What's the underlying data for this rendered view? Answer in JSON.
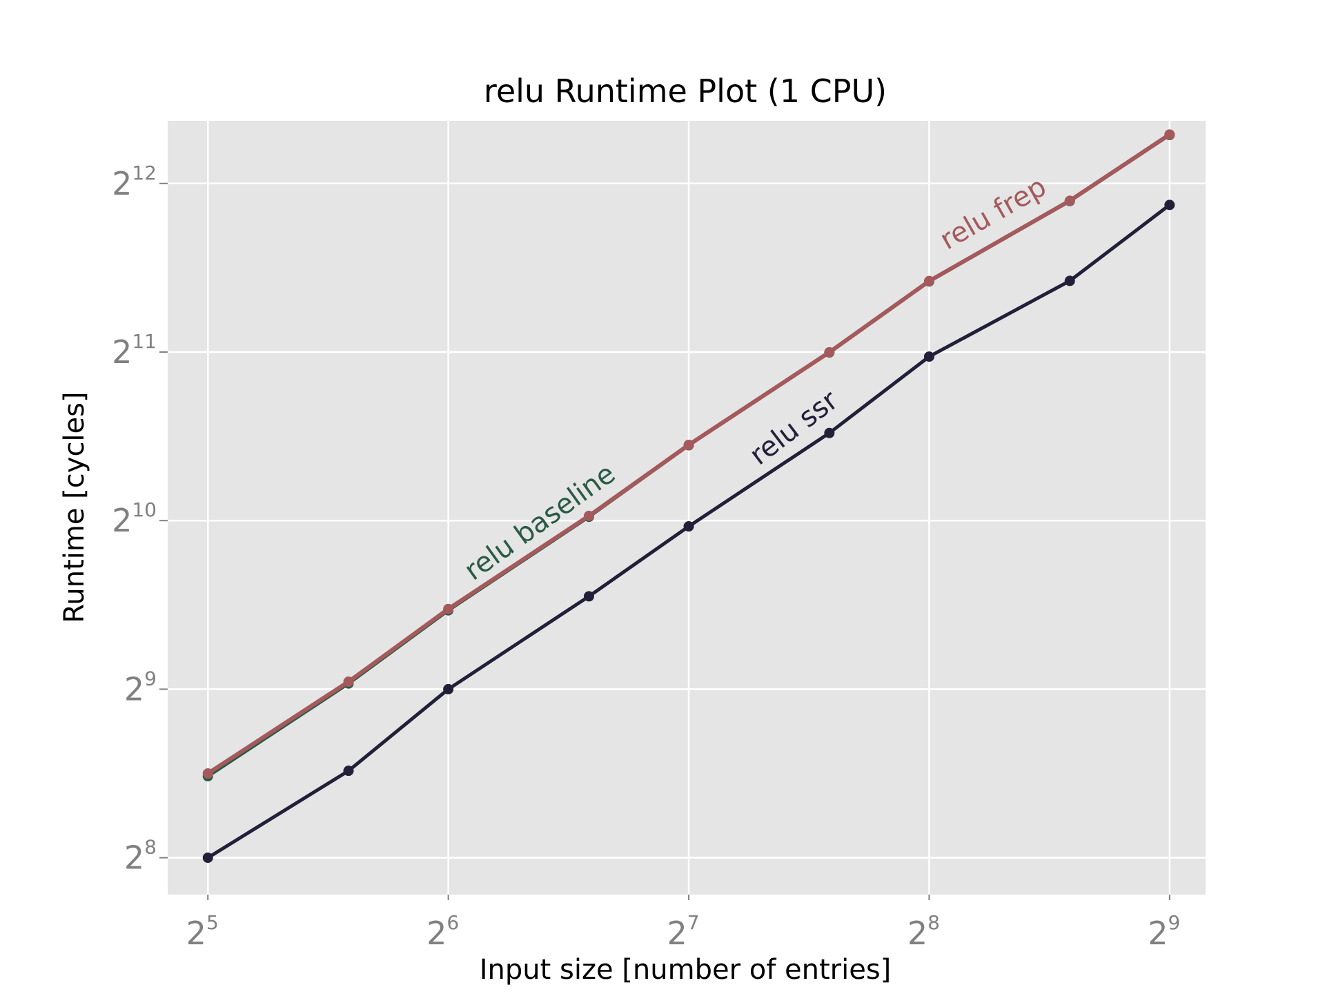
{
  "chart_data": {
    "type": "line",
    "title": "relu Runtime Plot (1 CPU)",
    "xlabel": "Input size [number of entries]",
    "ylabel": "Runtime [cycles]",
    "x_scale": "log2",
    "y_scale": "log2",
    "xlim": [
      28.5,
      568
    ],
    "ylim": [
      220,
      5300
    ],
    "x_ticks": [
      {
        "value": 32,
        "base": "2",
        "exp": "5"
      },
      {
        "value": 64,
        "base": "2",
        "exp": "6"
      },
      {
        "value": 128,
        "base": "2",
        "exp": "7"
      },
      {
        "value": 256,
        "base": "2",
        "exp": "8"
      },
      {
        "value": 512,
        "base": "2",
        "exp": "9"
      }
    ],
    "y_ticks": [
      {
        "value": 256,
        "base": "2",
        "exp": "8"
      },
      {
        "value": 512,
        "base": "2",
        "exp": "9"
      },
      {
        "value": 1024,
        "base": "2",
        "exp": "10"
      },
      {
        "value": 2048,
        "base": "2",
        "exp": "11"
      },
      {
        "value": 4096,
        "base": "2",
        "exp": "12"
      }
    ],
    "grid": true,
    "series": [
      {
        "name": "relu baseline",
        "color": "#2a5a46",
        "x": [
          32,
          48,
          64,
          96,
          128,
          192,
          256,
          384,
          512
        ],
        "y": [
          358,
          524,
          708,
          1040,
          1396,
          2044,
          2738,
          3810,
          5000
        ]
      },
      {
        "name": "relu frep",
        "color": "#a45a5c",
        "x": [
          32,
          48,
          64,
          96,
          128,
          192,
          256,
          384,
          512
        ],
        "y": [
          362,
          528,
          712,
          1044,
          1398,
          2046,
          2742,
          3815,
          5010
        ]
      },
      {
        "name": "relu ssr",
        "color": "#222039",
        "x": [
          32,
          48,
          64,
          96,
          128,
          192,
          256,
          384,
          512
        ],
        "y": [
          256,
          366,
          512,
          750,
          1000,
          1468,
          2010,
          2744,
          3750
        ]
      }
    ]
  }
}
